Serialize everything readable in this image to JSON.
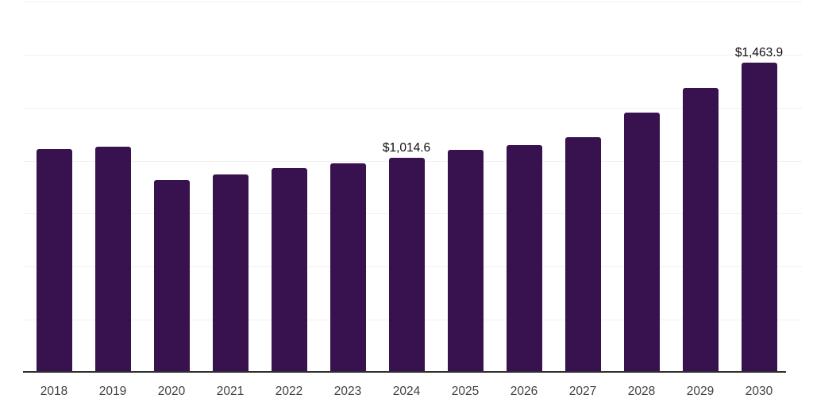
{
  "chart_data": {
    "type": "bar",
    "title": "",
    "xlabel": "",
    "ylabel": "",
    "categories": [
      "2018",
      "2019",
      "2020",
      "2021",
      "2022",
      "2023",
      "2024",
      "2025",
      "2026",
      "2027",
      "2028",
      "2029",
      "2030"
    ],
    "values": [
      1054,
      1064,
      909,
      935,
      965,
      987,
      1014.6,
      1051,
      1073,
      1111,
      1226,
      1342,
      1463.9
    ],
    "data_labels": [
      "",
      "",
      "",
      "",
      "",
      "",
      "$1,014.6",
      "",
      "",
      "",
      "",
      "",
      "$1,463.9"
    ],
    "ylim": [
      0,
      1750
    ],
    "gridline_step": 250,
    "grid": "horizontal-only",
    "legend_position": "none",
    "value_prefix": "$",
    "colors": {
      "bar_fill": "#38114F",
      "gridline": "#F0F0F0",
      "axis_line": "#2E2E2E",
      "tick_label": "#424242",
      "data_label": "#0F0F0F",
      "background": "#FFFFFF"
    }
  }
}
